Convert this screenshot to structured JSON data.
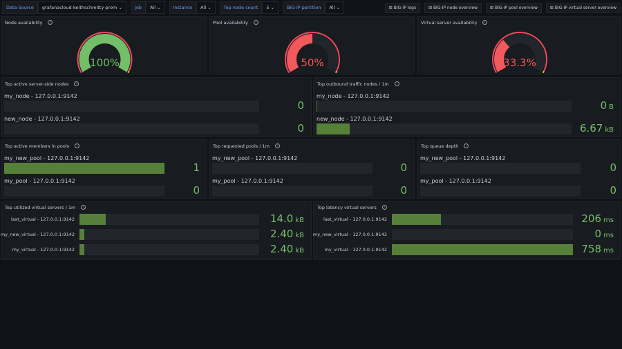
{
  "variables": [
    {
      "label": "Data Source",
      "value": "grafanacloud-keithschmitty-prom",
      "dropdown": true
    },
    {
      "label": "Job",
      "value": "All",
      "dropdown": true
    },
    {
      "label": "Instance",
      "value": "All",
      "dropdown": true
    },
    {
      "label": "Top node count",
      "value": "5",
      "dropdown": true
    },
    {
      "label": "BIG-IP partition",
      "value": "All",
      "dropdown": true
    }
  ],
  "links": [
    "BIG-IP logs",
    "BIG-IP node overview",
    "BIG-IP pool overview",
    "BIG-IP virtual server overview"
  ],
  "colors": {
    "green": "#73bf69",
    "red": "#f2495c",
    "bar": "#56803a",
    "yellow": "#fade2a"
  },
  "gauges": [
    {
      "title": "Node availability",
      "value": "100%",
      "percent": 100,
      "color": "#73bf69"
    },
    {
      "title": "Pool availability",
      "value": "50%",
      "percent": 50,
      "color": "#f2595c"
    },
    {
      "title": "Virtual server availability",
      "value": "33.3%",
      "percent": 33.3,
      "color": "#f2595c"
    }
  ],
  "bar_panels": [
    {
      "title": "Top active server-side nodes",
      "rows": [
        {
          "label": "my_node - 127.0.0.1:9142",
          "value": "0",
          "unit": "",
          "fraction": 0
        },
        {
          "label": "new_node - 127.0.0.1:9142",
          "value": "0",
          "unit": "",
          "fraction": 0
        }
      ]
    },
    {
      "title": "Top outbound traffic nodes / 1m",
      "rows": [
        {
          "label": "my_node - 127.0.0.1:9142",
          "value": "0",
          "unit": "B",
          "fraction": 0.003
        },
        {
          "label": "new_node - 127.0.0.1:9142",
          "value": "6.67",
          "unit": "kB",
          "fraction": 0.13
        }
      ]
    },
    {
      "title": "Top active members in pools",
      "rows": [
        {
          "label": "my_new_pool - 127.0.0.1:9142",
          "value": "1",
          "unit": "",
          "fraction": 1
        },
        {
          "label": "my_pool - 127.0.0.1:9142",
          "value": "0",
          "unit": "",
          "fraction": 0
        }
      ]
    },
    {
      "title": "Top requested pools / 1m",
      "rows": [
        {
          "label": "my_new_pool - 127.0.0.1:9142",
          "value": "0",
          "unit": "",
          "fraction": 0
        },
        {
          "label": "my_pool - 127.0.0.1:9142",
          "value": "0",
          "unit": "",
          "fraction": 0
        }
      ]
    },
    {
      "title": "Top queue depth",
      "rows": [
        {
          "label": "my_new_pool - 127.0.0.1:9142",
          "value": "0",
          "unit": "",
          "fraction": 0
        },
        {
          "label": "my_pool - 127.0.0.1:9142",
          "value": "0",
          "unit": "",
          "fraction": 0
        }
      ]
    },
    {
      "title": "Top utilized virtual servers / 1m",
      "rows": [
        {
          "label": "last_virtual - 127.0.0.1:9142",
          "value": "14.0",
          "unit": "kB",
          "fraction": 0.146
        },
        {
          "label": "my_new_virtual - 127.0.0.1:9142",
          "value": "2.40",
          "unit": "kB",
          "fraction": 0.025
        },
        {
          "label": "my_virtual - 127.0.0.1:9142",
          "value": "2.40",
          "unit": "kB",
          "fraction": 0.025
        }
      ]
    },
    {
      "title": "Top latency virtual servers",
      "rows": [
        {
          "label": "last_virtual - 127.0.0.1:9142",
          "value": "206",
          "unit": "ms",
          "fraction": 0.27
        },
        {
          "label": "my_new_virtual - 127.0.0.1:9142",
          "value": "0",
          "unit": "ms",
          "fraction": 0
        },
        {
          "label": "my_virtual - 127.0.0.1:9142",
          "value": "758",
          "unit": "ms",
          "fraction": 1
        }
      ]
    }
  ]
}
